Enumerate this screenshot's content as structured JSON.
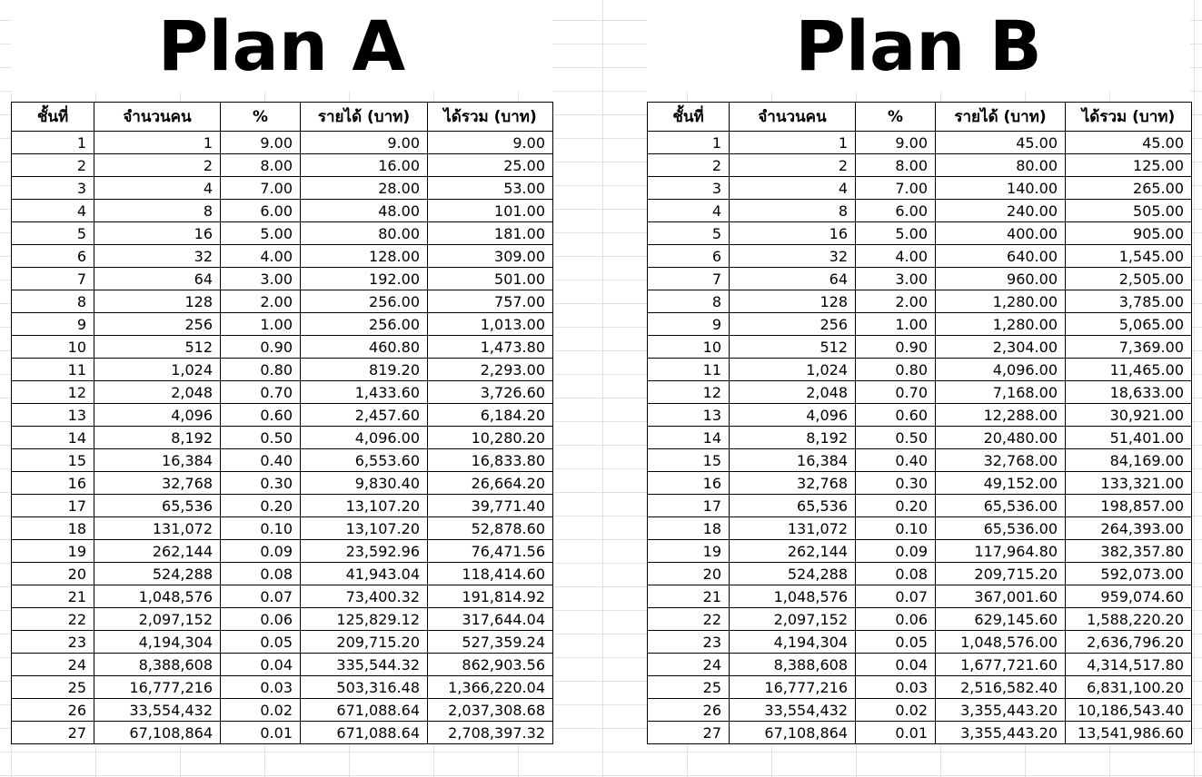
{
  "plan_a": {
    "title": "Plan A",
    "headers": [
      "ชั้นที่",
      "จำนวนคน",
      "%",
      "รายได้ (บาท)",
      "ได้รวม (บาท)"
    ],
    "rows": [
      [
        "1",
        "1",
        "9.00",
        "9.00",
        "9.00"
      ],
      [
        "2",
        "2",
        "8.00",
        "16.00",
        "25.00"
      ],
      [
        "3",
        "4",
        "7.00",
        "28.00",
        "53.00"
      ],
      [
        "4",
        "8",
        "6.00",
        "48.00",
        "101.00"
      ],
      [
        "5",
        "16",
        "5.00",
        "80.00",
        "181.00"
      ],
      [
        "6",
        "32",
        "4.00",
        "128.00",
        "309.00"
      ],
      [
        "7",
        "64",
        "3.00",
        "192.00",
        "501.00"
      ],
      [
        "8",
        "128",
        "2.00",
        "256.00",
        "757.00"
      ],
      [
        "9",
        "256",
        "1.00",
        "256.00",
        "1,013.00"
      ],
      [
        "10",
        "512",
        "0.90",
        "460.80",
        "1,473.80"
      ],
      [
        "11",
        "1,024",
        "0.80",
        "819.20",
        "2,293.00"
      ],
      [
        "12",
        "2,048",
        "0.70",
        "1,433.60",
        "3,726.60"
      ],
      [
        "13",
        "4,096",
        "0.60",
        "2,457.60",
        "6,184.20"
      ],
      [
        "14",
        "8,192",
        "0.50",
        "4,096.00",
        "10,280.20"
      ],
      [
        "15",
        "16,384",
        "0.40",
        "6,553.60",
        "16,833.80"
      ],
      [
        "16",
        "32,768",
        "0.30",
        "9,830.40",
        "26,664.20"
      ],
      [
        "17",
        "65,536",
        "0.20",
        "13,107.20",
        "39,771.40"
      ],
      [
        "18",
        "131,072",
        "0.10",
        "13,107.20",
        "52,878.60"
      ],
      [
        "19",
        "262,144",
        "0.09",
        "23,592.96",
        "76,471.56"
      ],
      [
        "20",
        "524,288",
        "0.08",
        "41,943.04",
        "118,414.60"
      ],
      [
        "21",
        "1,048,576",
        "0.07",
        "73,400.32",
        "191,814.92"
      ],
      [
        "22",
        "2,097,152",
        "0.06",
        "125,829.12",
        "317,644.04"
      ],
      [
        "23",
        "4,194,304",
        "0.05",
        "209,715.20",
        "527,359.24"
      ],
      [
        "24",
        "8,388,608",
        "0.04",
        "335,544.32",
        "862,903.56"
      ],
      [
        "25",
        "16,777,216",
        "0.03",
        "503,316.48",
        "1,366,220.04"
      ],
      [
        "26",
        "33,554,432",
        "0.02",
        "671,088.64",
        "2,037,308.68"
      ],
      [
        "27",
        "67,108,864",
        "0.01",
        "671,088.64",
        "2,708,397.32"
      ]
    ]
  },
  "plan_b": {
    "title": "Plan B",
    "headers": [
      "ชั้นที่",
      "จำนวนคน",
      "%",
      "รายได้ (บาท)",
      "ได้รวม (บาท)"
    ],
    "rows": [
      [
        "1",
        "1",
        "9.00",
        "45.00",
        "45.00"
      ],
      [
        "2",
        "2",
        "8.00",
        "80.00",
        "125.00"
      ],
      [
        "3",
        "4",
        "7.00",
        "140.00",
        "265.00"
      ],
      [
        "4",
        "8",
        "6.00",
        "240.00",
        "505.00"
      ],
      [
        "5",
        "16",
        "5.00",
        "400.00",
        "905.00"
      ],
      [
        "6",
        "32",
        "4.00",
        "640.00",
        "1,545.00"
      ],
      [
        "7",
        "64",
        "3.00",
        "960.00",
        "2,505.00"
      ],
      [
        "8",
        "128",
        "2.00",
        "1,280.00",
        "3,785.00"
      ],
      [
        "9",
        "256",
        "1.00",
        "1,280.00",
        "5,065.00"
      ],
      [
        "10",
        "512",
        "0.90",
        "2,304.00",
        "7,369.00"
      ],
      [
        "11",
        "1,024",
        "0.80",
        "4,096.00",
        "11,465.00"
      ],
      [
        "12",
        "2,048",
        "0.70",
        "7,168.00",
        "18,633.00"
      ],
      [
        "13",
        "4,096",
        "0.60",
        "12,288.00",
        "30,921.00"
      ],
      [
        "14",
        "8,192",
        "0.50",
        "20,480.00",
        "51,401.00"
      ],
      [
        "15",
        "16,384",
        "0.40",
        "32,768.00",
        "84,169.00"
      ],
      [
        "16",
        "32,768",
        "0.30",
        "49,152.00",
        "133,321.00"
      ],
      [
        "17",
        "65,536",
        "0.20",
        "65,536.00",
        "198,857.00"
      ],
      [
        "18",
        "131,072",
        "0.10",
        "65,536.00",
        "264,393.00"
      ],
      [
        "19",
        "262,144",
        "0.09",
        "117,964.80",
        "382,357.80"
      ],
      [
        "20",
        "524,288",
        "0.08",
        "209,715.20",
        "592,073.00"
      ],
      [
        "21",
        "1,048,576",
        "0.07",
        "367,001.60",
        "959,074.60"
      ],
      [
        "22",
        "2,097,152",
        "0.06",
        "629,145.60",
        "1,588,220.20"
      ],
      [
        "23",
        "4,194,304",
        "0.05",
        "1,048,576.00",
        "2,636,796.20"
      ],
      [
        "24",
        "8,388,608",
        "0.04",
        "1,677,721.60",
        "4,314,517.80"
      ],
      [
        "25",
        "16,777,216",
        "0.03",
        "2,516,582.40",
        "6,831,100.20"
      ],
      [
        "26",
        "33,554,432",
        "0.02",
        "3,355,443.20",
        "10,186,543.40"
      ],
      [
        "27",
        "67,108,864",
        "0.01",
        "3,355,443.20",
        "13,541,986.60"
      ]
    ]
  }
}
